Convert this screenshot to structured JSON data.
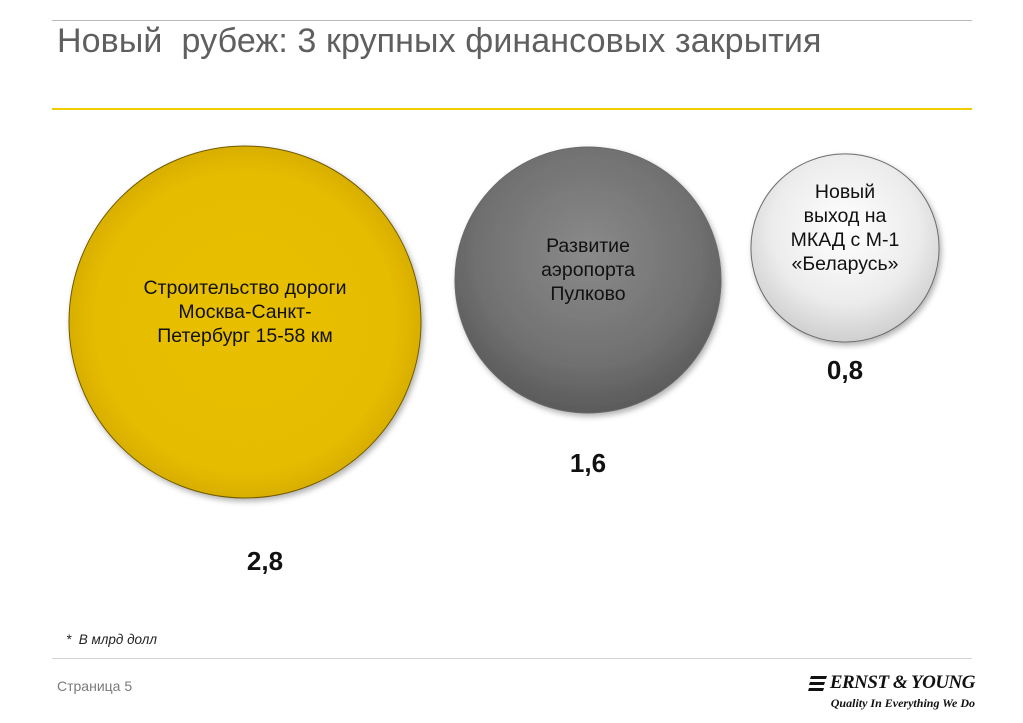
{
  "title": "Новый  рубеж: 3 крупных финансовых закрытия",
  "chart_data": {
    "type": "bubble",
    "unit_note": "*  В млрд долл",
    "bubbles": [
      {
        "label_lines": [
          "Строительство дороги",
          "Москва-Санкт-",
          "Петербург 15-58 км"
        ],
        "value": 2.8,
        "value_label": "2,8",
        "color": "#e8bf00"
      },
      {
        "label_lines": [
          "Развитие",
          "аэропорта",
          "Пулково"
        ],
        "value": 1.6,
        "value_label": "1,6",
        "color": "#6f6f6f"
      },
      {
        "label_lines": [
          "Новый",
          "выход на",
          "МКАД с М-1",
          "«Беларусь»"
        ],
        "value": 0.8,
        "value_label": "0,8",
        "color": "#e6e6e6"
      }
    ]
  },
  "footer": {
    "page_label": "Страница 5",
    "logo_name": "ERNST & YOUNG",
    "logo_tagline": "Quality In Everything We Do"
  }
}
